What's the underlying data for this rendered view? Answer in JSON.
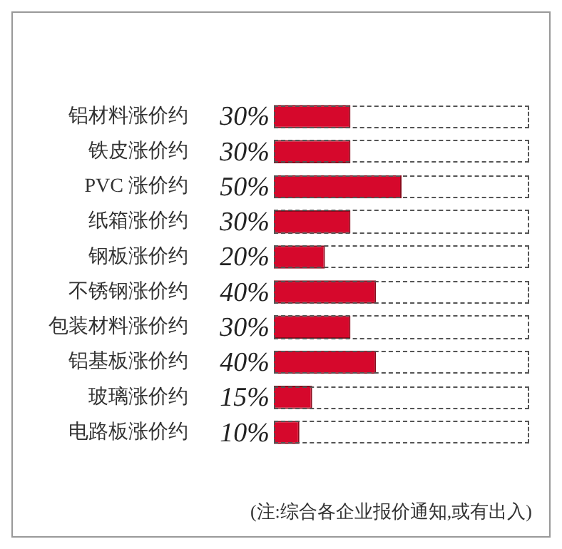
{
  "chart_data": {
    "type": "bar",
    "orientation": "horizontal",
    "categories": [
      "铝材料涨价约",
      "铁皮涨价约",
      "PVC 涨价约",
      "纸箱涨价约",
      "钢板涨价约",
      "不锈钢涨价约",
      "包装材料涨价约",
      "铝基板涨价约",
      "玻璃涨价约",
      "电路板涨价约"
    ],
    "values": [
      30,
      30,
      50,
      30,
      20,
      40,
      30,
      40,
      15,
      10
    ],
    "value_labels": [
      "30%",
      "30%",
      "50%",
      "30%",
      "20%",
      "40%",
      "30%",
      "40%",
      "15%",
      "10%"
    ],
    "color": "#d6082c",
    "xlim": [
      0,
      100
    ],
    "tick_labels": "y",
    "annotations": [
      "(注:综合各企业报价通知,或有出入)"
    ]
  }
}
